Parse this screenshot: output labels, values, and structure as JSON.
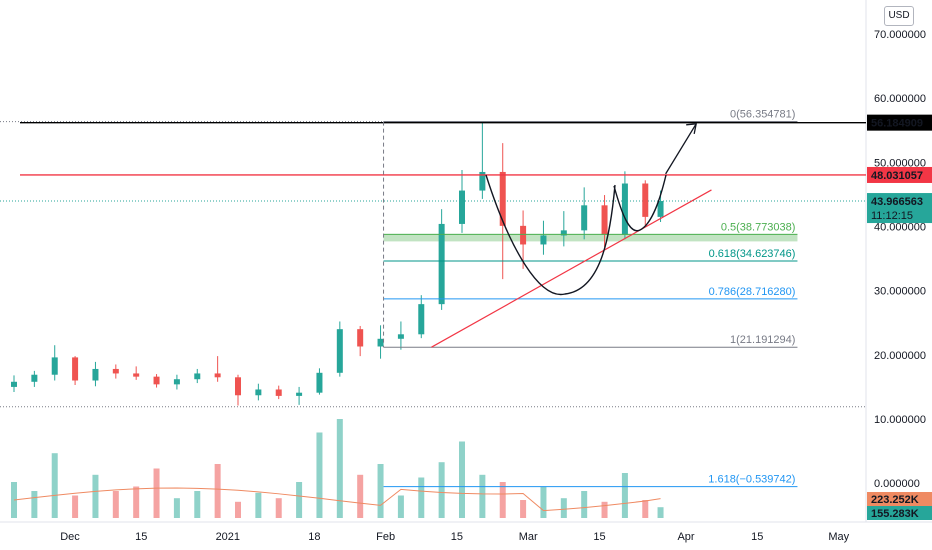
{
  "currency": "USD",
  "price_axis": {
    "ticks": [
      {
        "value": 70,
        "label": "70.000000"
      },
      {
        "value": 60,
        "label": "60.000000"
      },
      {
        "value": 50,
        "label": "50.000000"
      },
      {
        "value": 40,
        "label": "40.000000"
      },
      {
        "value": 30,
        "label": "30.000000"
      },
      {
        "value": 20,
        "label": "20.000000"
      },
      {
        "value": 10,
        "label": "10.000000"
      },
      {
        "value": 0,
        "label": "0.000000"
      }
    ],
    "badges": [
      {
        "value": 56.184909,
        "label": "56.184909",
        "color": "#000000"
      },
      {
        "value": 48.031057,
        "label": "48.031057",
        "color": "#f23645"
      },
      {
        "value": 43.966563,
        "label": "43.966563",
        "sub": "11:12:15",
        "color": "#26a69a"
      }
    ],
    "bottom_badges": [
      {
        "label": "223.252K",
        "color": "#ef8a62"
      },
      {
        "label": "155.283K",
        "color": "#26a69a"
      }
    ]
  },
  "time_axis": [
    "Dec",
    "15",
    "2021",
    "18",
    "Feb",
    "15",
    "Mar",
    "15",
    "Apr",
    "15",
    "May"
  ],
  "fib_levels": [
    {
      "ratio": "0",
      "label": "0(56.354781)",
      "value": 56.354781,
      "color": "#787b86"
    },
    {
      "ratio": "0.5",
      "label": "0.5(38.773038)",
      "value": 38.773038,
      "color": "#4caf50"
    },
    {
      "ratio": "0.618",
      "label": "0.618(34.623746)",
      "value": 34.623746,
      "color": "#009688"
    },
    {
      "ratio": "0.786",
      "label": "0.786(28.716280)",
      "value": 28.71628,
      "color": "#2196f3"
    },
    {
      "ratio": "1",
      "label": "1(21.191294)",
      "value": 21.191294,
      "color": "#787b86"
    },
    {
      "ratio": "1.618",
      "label": "1.618(−0.539742)",
      "value": -0.539742,
      "color": "#2196f3"
    }
  ],
  "horizontal_lines": [
    {
      "name": "resistance-top",
      "value": 56.184909,
      "color": "#000000"
    },
    {
      "name": "resistance-red",
      "value": 48.031057,
      "color": "#f23645"
    }
  ],
  "chart_data": {
    "type": "candlestick",
    "title": "",
    "xlabel": "",
    "ylabel": "",
    "ylim": [
      -5,
      75
    ],
    "grid": false,
    "x_range": [
      "2020-11-18",
      "2021-05-05"
    ],
    "legend": "none",
    "candles": [
      {
        "t": "2020-11-20",
        "o": 15.0,
        "h": 16.8,
        "l": 14.2,
        "c": 15.8
      },
      {
        "t": "2020-11-24",
        "o": 15.8,
        "h": 17.5,
        "l": 15.0,
        "c": 16.9
      },
      {
        "t": "2020-11-28",
        "o": 16.9,
        "h": 21.5,
        "l": 16.0,
        "c": 19.6
      },
      {
        "t": "2020-12-02",
        "o": 19.6,
        "h": 19.8,
        "l": 15.3,
        "c": 16.0
      },
      {
        "t": "2020-12-06",
        "o": 16.0,
        "h": 18.9,
        "l": 15.1,
        "c": 17.8
      },
      {
        "t": "2020-12-10",
        "o": 17.8,
        "h": 18.5,
        "l": 16.3,
        "c": 17.1
      },
      {
        "t": "2020-12-14",
        "o": 17.1,
        "h": 18.2,
        "l": 16.1,
        "c": 16.6
      },
      {
        "t": "2020-12-18",
        "o": 16.6,
        "h": 17.0,
        "l": 14.9,
        "c": 15.4
      },
      {
        "t": "2020-12-22",
        "o": 15.4,
        "h": 16.9,
        "l": 14.6,
        "c": 16.2
      },
      {
        "t": "2020-12-26",
        "o": 16.2,
        "h": 17.8,
        "l": 15.6,
        "c": 17.1
      },
      {
        "t": "2020-12-30",
        "o": 17.1,
        "h": 19.8,
        "l": 15.8,
        "c": 16.5
      },
      {
        "t": "2021-01-03",
        "o": 16.5,
        "h": 16.9,
        "l": 12.1,
        "c": 13.7
      },
      {
        "t": "2021-01-07",
        "o": 13.7,
        "h": 15.5,
        "l": 12.9,
        "c": 14.6
      },
      {
        "t": "2021-01-11",
        "o": 14.6,
        "h": 15.2,
        "l": 13.1,
        "c": 13.6
      },
      {
        "t": "2021-01-15",
        "o": 13.6,
        "h": 15.0,
        "l": 12.2,
        "c": 14.1
      },
      {
        "t": "2021-01-19",
        "o": 14.1,
        "h": 17.9,
        "l": 13.8,
        "c": 17.2
      },
      {
        "t": "2021-01-23",
        "o": 17.2,
        "h": 25.2,
        "l": 16.6,
        "c": 24.0
      },
      {
        "t": "2021-01-27",
        "o": 24.0,
        "h": 24.5,
        "l": 19.8,
        "c": 21.3
      },
      {
        "t": "2021-01-31",
        "o": 21.3,
        "h": 24.6,
        "l": 19.4,
        "c": 22.5
      },
      {
        "t": "2021-02-04",
        "o": 22.5,
        "h": 25.2,
        "l": 20.8,
        "c": 23.2
      },
      {
        "t": "2021-02-08",
        "o": 23.2,
        "h": 29.3,
        "l": 22.6,
        "c": 27.9
      },
      {
        "t": "2021-02-12",
        "o": 27.9,
        "h": 42.7,
        "l": 27.0,
        "c": 40.4
      },
      {
        "t": "2021-02-16",
        "o": 40.4,
        "h": 48.8,
        "l": 39.0,
        "c": 45.6
      },
      {
        "t": "2021-02-20",
        "o": 45.6,
        "h": 56.2,
        "l": 44.3,
        "c": 48.5
      },
      {
        "t": "2021-02-24",
        "o": 48.5,
        "h": 53.0,
        "l": 31.8,
        "c": 40.1
      },
      {
        "t": "2021-02-28",
        "o": 40.1,
        "h": 42.5,
        "l": 33.4,
        "c": 37.2
      },
      {
        "t": "2021-03-04",
        "o": 37.2,
        "h": 40.9,
        "l": 35.6,
        "c": 38.6
      },
      {
        "t": "2021-03-08",
        "o": 38.6,
        "h": 42.4,
        "l": 36.9,
        "c": 39.4
      },
      {
        "t": "2021-03-12",
        "o": 39.4,
        "h": 46.1,
        "l": 38.0,
        "c": 43.3
      },
      {
        "t": "2021-03-16",
        "o": 43.3,
        "h": 44.9,
        "l": 36.8,
        "c": 38.7
      },
      {
        "t": "2021-03-20",
        "o": 38.7,
        "h": 48.6,
        "l": 38.0,
        "c": 46.7
      },
      {
        "t": "2021-03-24",
        "o": 46.7,
        "h": 47.2,
        "l": 40.2,
        "c": 41.5
      },
      {
        "t": "2021-03-27",
        "o": 41.5,
        "h": 45.6,
        "l": 40.7,
        "c": 43.97
      }
    ],
    "volume": {
      "unit": "K",
      "moving_average_last": 223.252,
      "last": 155.283
    },
    "trendline": [
      {
        "t": "2021-02-10",
        "v": 21.19
      },
      {
        "t": "2021-04-06",
        "v": 45.7
      }
    ],
    "projection_arrow": [
      {
        "t": "2021-03-28",
        "v": 48.2
      },
      {
        "t": "2021-04-03",
        "v": 56.0
      }
    ]
  }
}
